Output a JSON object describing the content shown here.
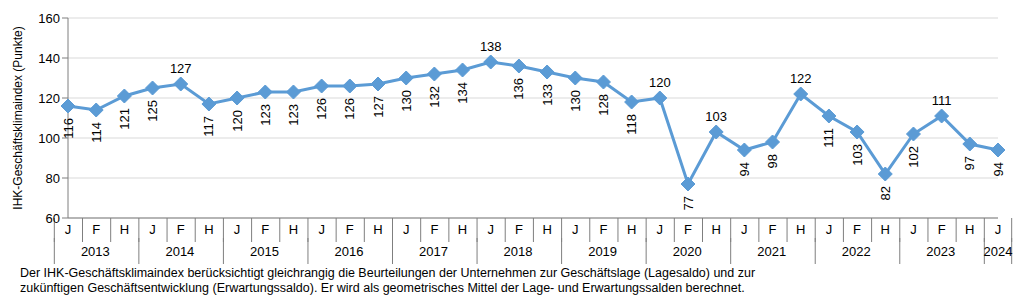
{
  "chart_data": {
    "type": "line",
    "y_label": "IHK-Geschäftsklimaindex (Punkte)",
    "categories": [
      "J",
      "F",
      "H",
      "J",
      "F",
      "H",
      "J",
      "F",
      "H",
      "J",
      "F",
      "H",
      "J",
      "F",
      "H",
      "J",
      "F",
      "H",
      "J",
      "F",
      "H",
      "J",
      "F",
      "H",
      "J",
      "F",
      "H",
      "J",
      "F",
      "H",
      "J",
      "F",
      "H",
      "J"
    ],
    "category_groups": [
      "2013",
      "2013",
      "2013",
      "2014",
      "2014",
      "2014",
      "2015",
      "2015",
      "2015",
      "2016",
      "2016",
      "2016",
      "2017",
      "2017",
      "2017",
      "2018",
      "2018",
      "2018",
      "2019",
      "2019",
      "2019",
      "2020",
      "2020",
      "2020",
      "2021",
      "2021",
      "2021",
      "2022",
      "2022",
      "2022",
      "2023",
      "2023",
      "2023",
      "2024"
    ],
    "values": [
      116,
      114,
      121,
      125,
      127,
      117,
      120,
      123,
      123,
      126,
      126,
      127,
      130,
      132,
      134,
      138,
      136,
      133,
      130,
      128,
      118,
      120,
      77,
      103,
      94,
      98,
      122,
      111,
      103,
      82,
      102,
      111,
      97,
      94
    ],
    "color": "#5B9BD5",
    "ylim": [
      60,
      160
    ],
    "yticks": [
      60,
      80,
      100,
      120,
      140,
      160
    ],
    "grid": true,
    "marker": "diamond",
    "data_labels": true,
    "footnote": [
      "Der IHK-Geschäftsklimaindex berücksichtigt gleichrangig die Beurteilungen der Unternehmen zur Geschäftslage (Lagesaldo) und zur",
      "zukünftigen Geschäftsentwicklung (Erwartungssaldo). Er wird als geometrisches Mittel der Lage- und Erwartungssalden berechnet."
    ]
  }
}
